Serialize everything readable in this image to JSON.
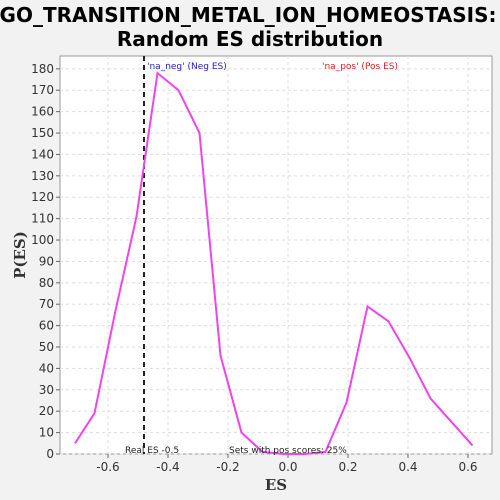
{
  "chart_data": {
    "type": "line",
    "title": "GO_TRANSITION_METAL_ION_HOMEOSTASIS:",
    "subtitle": "Random ES distribution",
    "xlabel": "ES",
    "ylabel": "P(ES)",
    "xlim": [
      -0.76,
      0.68
    ],
    "ylim": [
      0,
      186
    ],
    "xticks": [
      -0.6,
      -0.4,
      -0.2,
      0.0,
      0.2,
      0.4,
      0.6
    ],
    "xtick_labels": [
      "-0.6",
      "-0.4",
      "-0.2",
      "0.0",
      "0.2",
      "0.4",
      "0.6"
    ],
    "yticks": [
      0,
      10,
      20,
      30,
      40,
      50,
      60,
      70,
      80,
      90,
      100,
      110,
      120,
      130,
      140,
      150,
      160,
      170,
      180
    ],
    "ytick_labels": [
      "0",
      "10",
      "20",
      "30",
      "40",
      "50",
      "60",
      "70",
      "80",
      "90",
      "100",
      "110",
      "120",
      "130",
      "140",
      "150",
      "160",
      "170",
      "180"
    ],
    "grid": true,
    "series": [
      {
        "color": "#ee44ee",
        "x": [
          -0.71,
          -0.645,
          -0.575,
          -0.505,
          -0.435,
          -0.365,
          -0.295,
          -0.225,
          -0.155,
          -0.085,
          -0.015,
          0.055,
          0.125,
          0.195,
          0.265,
          0.335,
          0.405,
          0.475,
          0.545,
          0.615
        ],
        "y": [
          5,
          19,
          67,
          111,
          178,
          170,
          150,
          46,
          10,
          1,
          0,
          0,
          1,
          24,
          69,
          62,
          45,
          26,
          15,
          4
        ]
      }
    ],
    "vline": {
      "x": -0.48,
      "color": "#222222"
    },
    "annotations": {
      "neg_label": "'na_neg' (Neg ES)",
      "neg_color": "#2222bb",
      "pos_label": "'na_pos' (Pos ES)",
      "pos_color": "#dd2222",
      "real_es": "Real ES -0.5",
      "pos_scores": "Sets with pos scores: 25%"
    }
  }
}
